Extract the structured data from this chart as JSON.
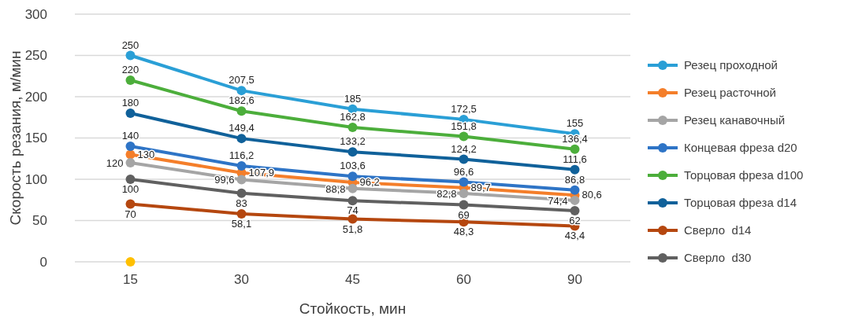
{
  "chart_data": {
    "type": "line",
    "xlabel": "Стойкость, мин",
    "ylabel": "Скорость резания, м/мин",
    "categories": [
      "15",
      "30",
      "45",
      "60",
      "90"
    ],
    "ylim": [
      0,
      300
    ],
    "yticks": [
      0,
      50,
      100,
      150,
      200,
      250,
      300
    ],
    "grid": "y",
    "legend": "right",
    "marker": "circle",
    "series": [
      {
        "name": "Резец проходной",
        "color": "#2a9fd6",
        "values": [
          250,
          207.5,
          185,
          172.5,
          155
        ],
        "value_labels": [
          "250",
          "207,5",
          "185",
          "172,5",
          "155"
        ]
      },
      {
        "name": "Резец расточной",
        "color": "#f47e2a",
        "values": [
          130,
          107.9,
          96.2,
          89.7,
          80.6
        ],
        "value_labels": [
          "130",
          "107,9",
          "96,2",
          "89,7",
          "80,6"
        ]
      },
      {
        "name": "Резец канавочный",
        "color": "#a5a5a5",
        "values": [
          120,
          99.6,
          88.8,
          82.8,
          74.4
        ],
        "value_labels": [
          "120",
          "99,6",
          "88,8",
          "82,8",
          "74,4"
        ]
      },
      {
        "name": "Концевая фреза d20",
        "color": "#2e74c6",
        "values": [
          140,
          116.2,
          103.6,
          96.6,
          86.8
        ],
        "value_labels": [
          "140",
          "116,2",
          "103,6",
          "96,6",
          "86,8"
        ]
      },
      {
        "name": "Торцовая фреза d100",
        "color": "#4cae3b",
        "values": [
          220,
          182.6,
          162.8,
          151.8,
          136.4
        ],
        "value_labels": [
          "220",
          "182,6",
          "162,8",
          "151,8",
          "136,4"
        ]
      },
      {
        "name": "Торцовая фреза d14",
        "color": "#10619a",
        "values": [
          180,
          149.4,
          133.2,
          124.2,
          111.6
        ],
        "value_labels": [
          "180",
          "149,4",
          "133,2",
          "124,2",
          "111,6"
        ]
      },
      {
        "name": "Сверло  d14",
        "color": "#b5470f",
        "values": [
          70,
          58.1,
          51.8,
          48.3,
          43.4
        ],
        "value_labels": [
          "70",
          "58,1",
          "51,8",
          "48,3",
          "43,4"
        ]
      },
      {
        "name": "Сверло  d30",
        "color": "#606060",
        "values": [
          100,
          83,
          74,
          69,
          62
        ],
        "value_labels": [
          "100",
          "83",
          "74",
          "69",
          "62"
        ]
      },
      {
        "type": "scatter",
        "color": "#ffc000",
        "x": [
          "15"
        ],
        "values": [
          0
        ],
        "value_labels": [
          null
        ]
      }
    ]
  }
}
